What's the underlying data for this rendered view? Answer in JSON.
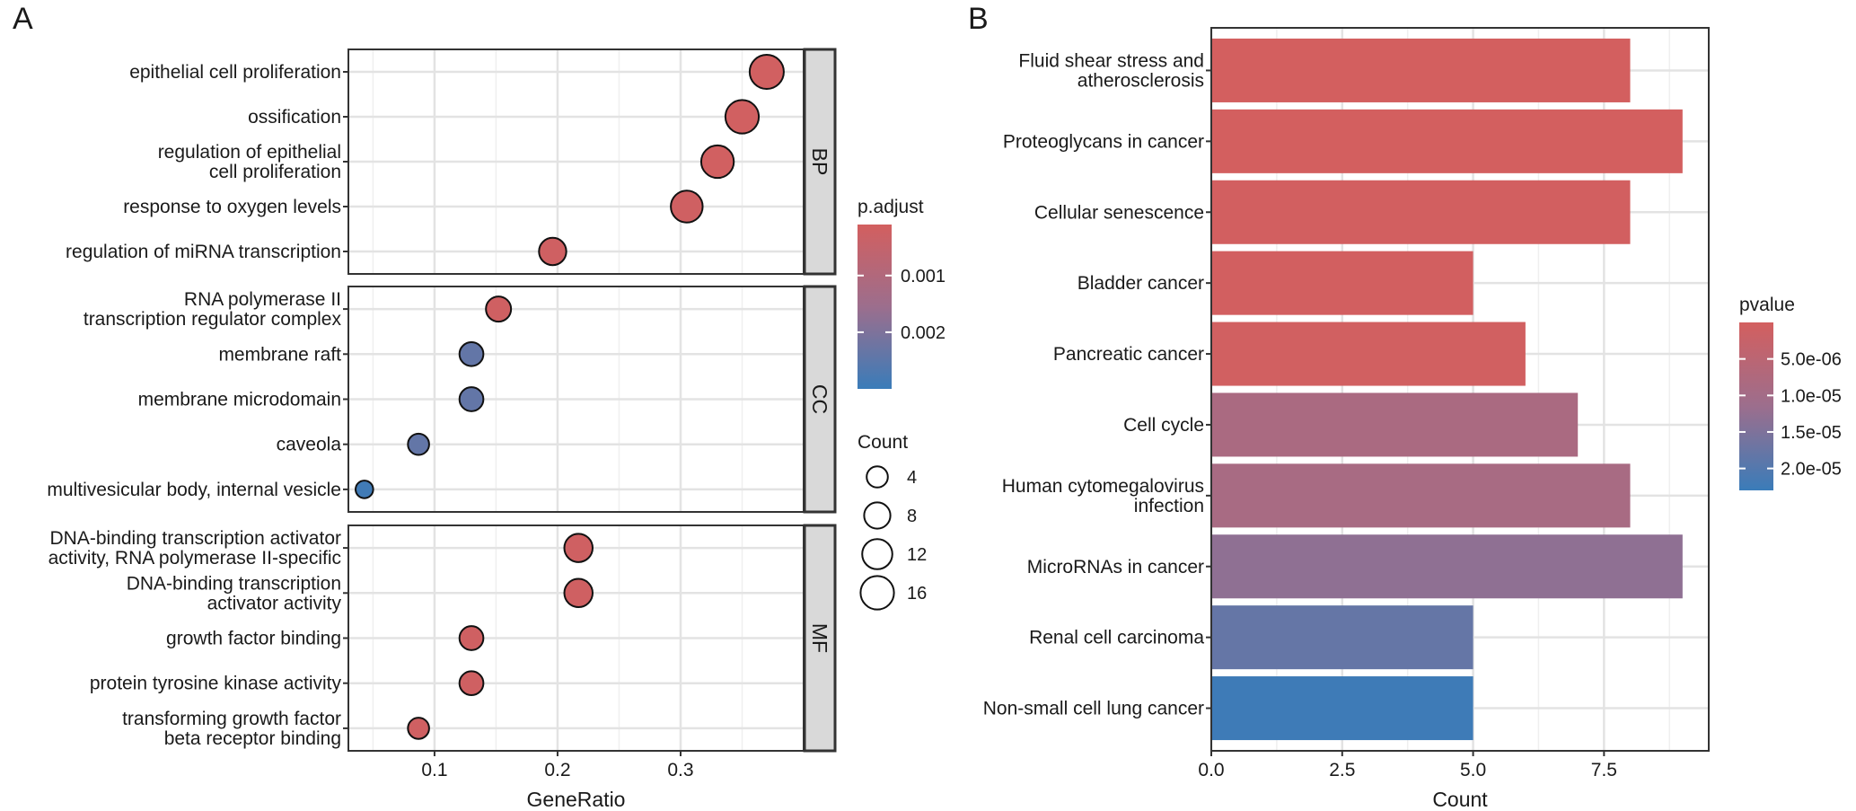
{
  "panel_labels": [
    "A",
    "B"
  ],
  "chart_data": [
    {
      "type": "scatter",
      "panel": "A",
      "xlabel": "GeneRatio",
      "ylabel": "",
      "xlim": [
        0.03,
        0.4
      ],
      "x_ticks": [
        0.1,
        0.2,
        0.3
      ],
      "x_tick_labels": [
        "0.1",
        "0.2",
        "0.3"
      ],
      "grid": true,
      "facets": [
        {
          "name": "BP",
          "terms": [
            {
              "label": [
                "epithelial cell proliferation"
              ],
              "gene_ratio": 0.37,
              "count": 17,
              "p_adjust": 0.00015
            },
            {
              "label": [
                "ossification"
              ],
              "gene_ratio": 0.35,
              "count": 16,
              "p_adjust": 0.00015
            },
            {
              "label": [
                "regulation of epithelial",
                "cell proliferation"
              ],
              "gene_ratio": 0.33,
              "count": 15,
              "p_adjust": 0.00015
            },
            {
              "label": [
                "response to oxygen levels"
              ],
              "gene_ratio": 0.305,
              "count": 14,
              "p_adjust": 0.0002
            },
            {
              "label": [
                "regulation of miRNA transcription"
              ],
              "gene_ratio": 0.196,
              "count": 9,
              "p_adjust": 0.0002
            }
          ]
        },
        {
          "name": "CC",
          "terms": [
            {
              "label": [
                "RNA polymerase II",
                "transcription regulator complex"
              ],
              "gene_ratio": 0.152,
              "count": 7,
              "p_adjust": 0.0002
            },
            {
              "label": [
                "membrane raft"
              ],
              "gene_ratio": 0.13,
              "count": 6,
              "p_adjust": 0.0024
            },
            {
              "label": [
                "membrane microdomain"
              ],
              "gene_ratio": 0.13,
              "count": 6,
              "p_adjust": 0.0024
            },
            {
              "label": [
                "caveola"
              ],
              "gene_ratio": 0.087,
              "count": 4,
              "p_adjust": 0.0024
            },
            {
              "label": [
                "multivesicular body, internal vesicle"
              ],
              "gene_ratio": 0.043,
              "count": 2,
              "p_adjust": 0.0029
            }
          ]
        },
        {
          "name": "MF",
          "terms": [
            {
              "label": [
                "DNA-binding transcription activator",
                "activity, RNA polymerase II-specific"
              ],
              "gene_ratio": 0.217,
              "count": 10,
              "p_adjust": 0.0002
            },
            {
              "label": [
                "DNA-binding transcription",
                "activator activity"
              ],
              "gene_ratio": 0.217,
              "count": 10,
              "p_adjust": 0.0002
            },
            {
              "label": [
                "growth factor binding"
              ],
              "gene_ratio": 0.13,
              "count": 6,
              "p_adjust": 0.0002
            },
            {
              "label": [
                "protein tyrosine kinase activity"
              ],
              "gene_ratio": 0.13,
              "count": 6,
              "p_adjust": 0.0002
            },
            {
              "label": [
                "transforming growth factor",
                "beta receptor binding"
              ],
              "gene_ratio": 0.087,
              "count": 4,
              "p_adjust": 0.0002
            }
          ]
        }
      ],
      "color_legend": {
        "title": "p.adjust",
        "range": [
          0.0001,
          0.003
        ],
        "ticks": [
          0.001,
          0.002
        ],
        "tick_labels": [
          "0.001",
          "0.002"
        ],
        "low_color": "#D35F5F",
        "mid_color": "#9C6E8D",
        "high_color": "#3A7CB9"
      },
      "size_legend": {
        "title": "Count",
        "values": [
          4,
          8,
          12,
          16
        ],
        "labels": [
          "4",
          "8",
          "12",
          "16"
        ]
      }
    },
    {
      "type": "bar",
      "panel": "B",
      "orientation": "horizontal",
      "xlabel": "Count",
      "ylabel": "",
      "xlim": [
        0,
        9.5
      ],
      "x_ticks": [
        0,
        2.5,
        5,
        7.5
      ],
      "x_tick_labels": [
        "0.0",
        "2.5",
        "5.0",
        "7.5"
      ],
      "grid": true,
      "categories": [
        [
          "Fluid shear stress and",
          "atherosclerosis"
        ],
        [
          "Proteoglycans in cancer"
        ],
        [
          "Cellular senescence"
        ],
        [
          "Bladder cancer"
        ],
        [
          "Pancreatic cancer"
        ],
        [
          "Cell cycle"
        ],
        [
          "Human cytomegalovirus",
          "infection"
        ],
        [
          "MicroRNAs in cancer"
        ],
        [
          "Renal cell carcinoma"
        ],
        [
          "Non-small cell lung cancer"
        ]
      ],
      "values": [
        8,
        9,
        8,
        5,
        6,
        7,
        8,
        9,
        5,
        5
      ],
      "pvalues": [
        1e-07,
        1e-07,
        2e-07,
        3e-07,
        4e-07,
        8.5e-06,
        9e-06,
        1.3e-05,
        1.8e-05,
        2.25e-05
      ],
      "color_legend": {
        "title": "pvalue",
        "range": [
          0,
          2.3e-05
        ],
        "ticks": [
          5e-06,
          1e-05,
          1.5e-05,
          2e-05
        ],
        "tick_labels": [
          "5.0e-06",
          "1.0e-05",
          "1.5e-05",
          "2.0e-05"
        ],
        "low_color": "#D35F5F",
        "mid_color": "#9C6E8D",
        "high_color": "#3A7CB9"
      }
    }
  ]
}
